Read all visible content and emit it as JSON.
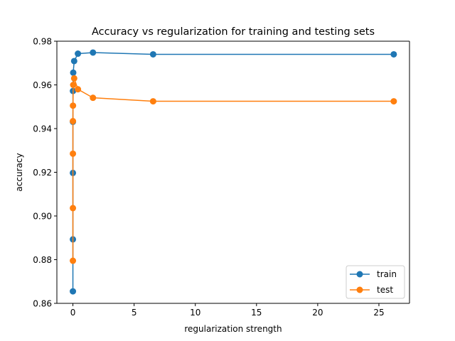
{
  "chart_data": {
    "type": "line",
    "title": "Accuracy vs regularization for training and testing sets",
    "xlabel": "regularization strength",
    "ylabel": "accuracy",
    "xlim": [
      -1.31,
      27.5
    ],
    "ylim": [
      0.86,
      0.98
    ],
    "xticks": [
      0,
      5,
      10,
      15,
      20,
      25
    ],
    "yticks": [
      0.86,
      0.88,
      0.9,
      0.92,
      0.94,
      0.96,
      0.98
    ],
    "ytick_labels": [
      "0.86",
      "0.88",
      "0.90",
      "0.92",
      "0.94",
      "0.96",
      "0.98"
    ],
    "grid": false,
    "legend_position": "lower-right",
    "series": [
      {
        "name": "train",
        "color": "#1f77b4",
        "marker": "circle",
        "x": [
          2.56e-05,
          0.0001,
          0.0004,
          0.0016,
          0.0064,
          0.0256,
          0.1024,
          0.4096,
          1.6384,
          6.5536,
          26.2144
        ],
        "y": [
          0.8655,
          0.8893,
          0.9197,
          0.9431,
          0.9572,
          0.9656,
          0.9709,
          0.9743,
          0.9748,
          0.974,
          0.974
        ]
      },
      {
        "name": "test",
        "color": "#ff7f0e",
        "marker": "circle",
        "x": [
          2.56e-05,
          0.0001,
          0.0004,
          0.0016,
          0.0064,
          0.0256,
          0.1024,
          0.4096,
          1.6384,
          6.5536,
          26.2144
        ],
        "y": [
          0.8795,
          0.9036,
          0.9285,
          0.9434,
          0.9505,
          0.96,
          0.963,
          0.958,
          0.9541,
          0.9525,
          0.9525
        ]
      }
    ]
  }
}
